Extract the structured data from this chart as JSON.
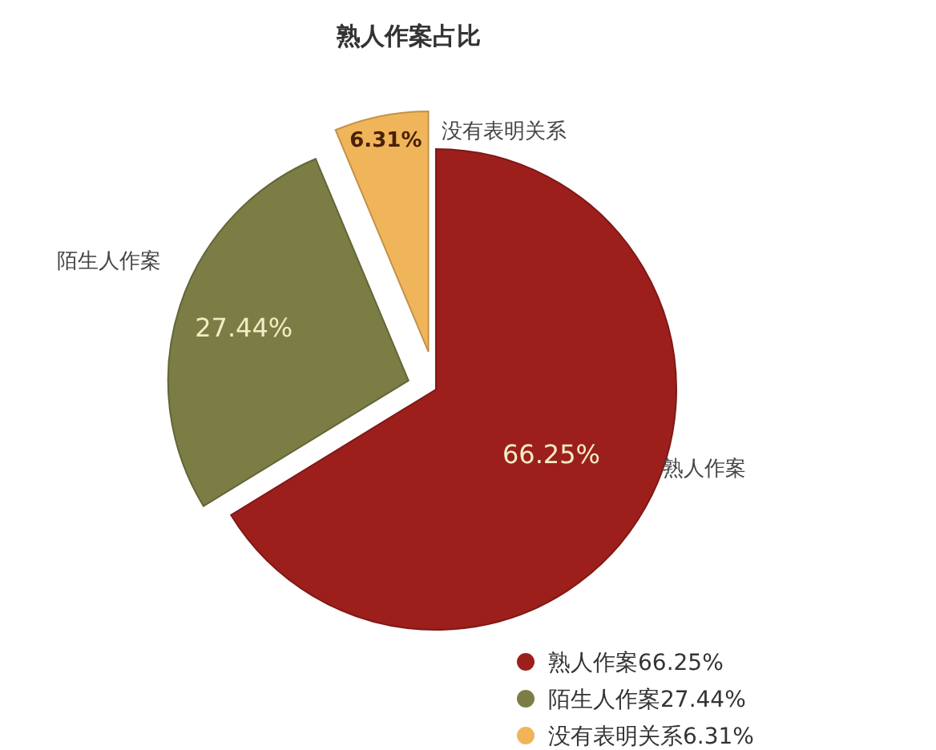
{
  "chart_data": {
    "type": "pie",
    "title": "熟人作案占比",
    "categories": [
      "熟人作案",
      "陌生人作案",
      "没有表明关系"
    ],
    "values": [
      66.25,
      27.44,
      6.31
    ],
    "colors": [
      "#9c1f1c",
      "#7b7d45",
      "#f0b55a"
    ],
    "value_labels": [
      "66.25%",
      "27.44%",
      "6.31%"
    ],
    "legend": "bottom right"
  }
}
